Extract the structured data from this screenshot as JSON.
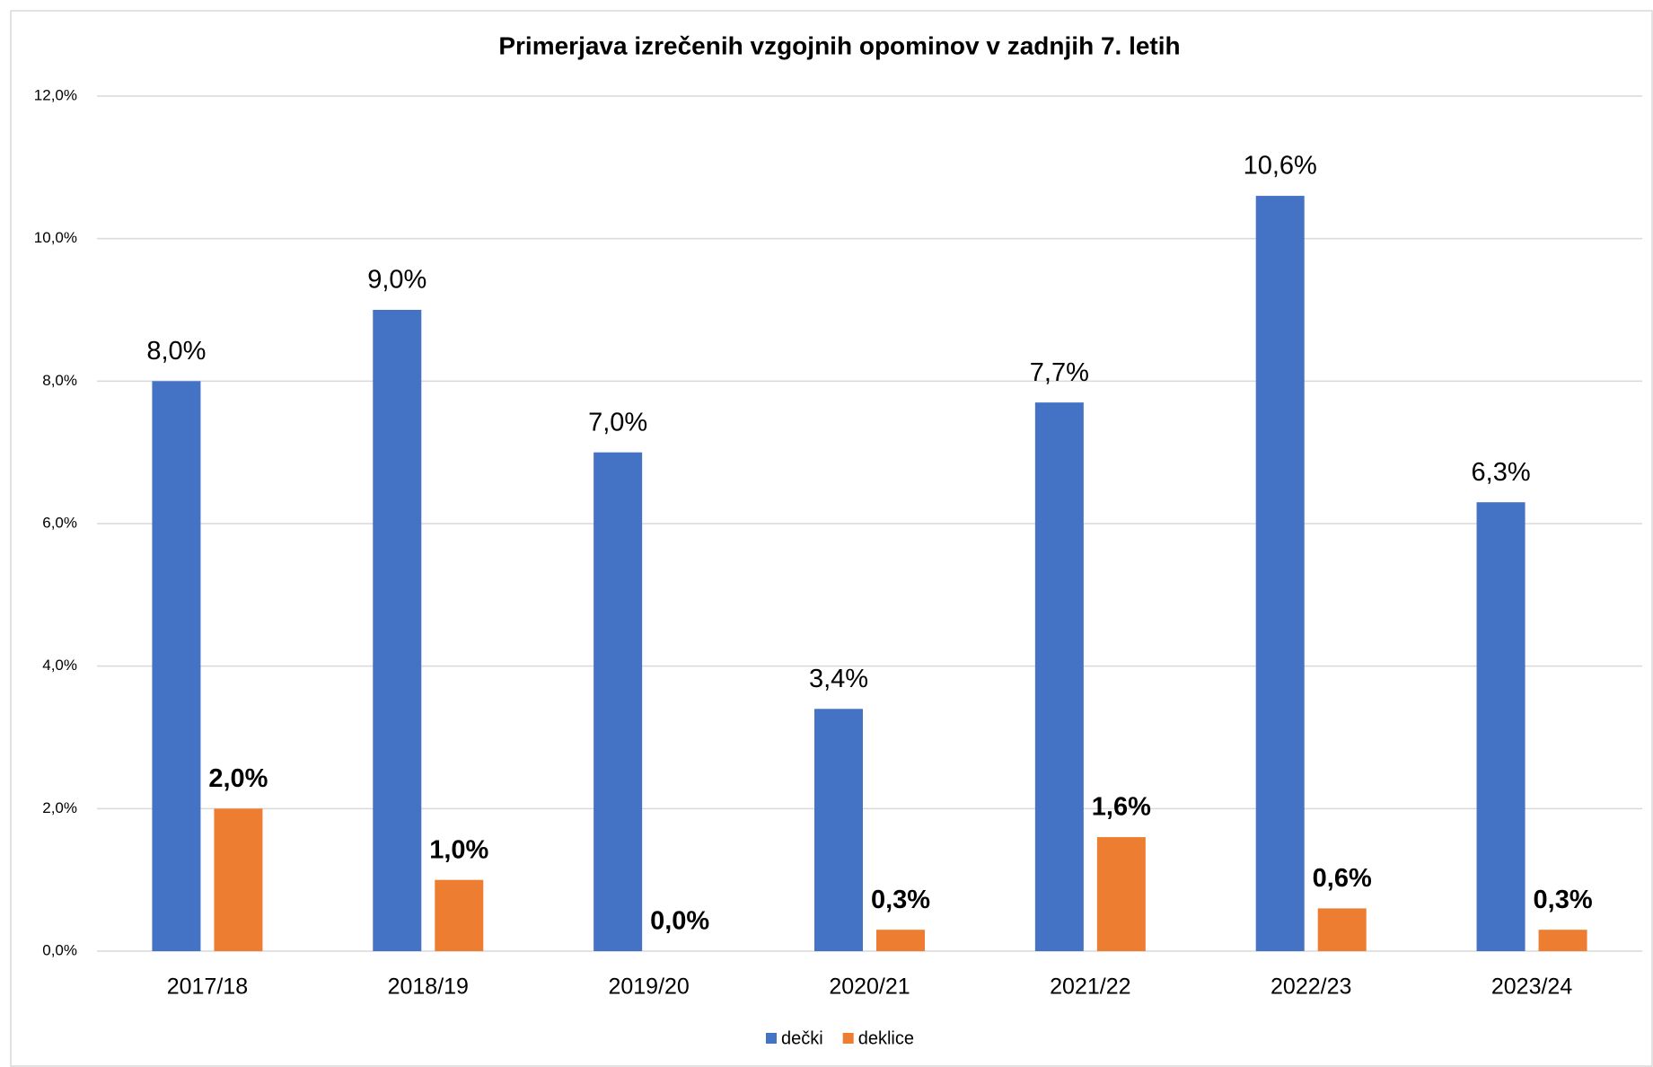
{
  "chart_data": {
    "type": "bar",
    "title": "Primerjava izrečenih vzgojnih opominov v zadnjih 7. letih",
    "categories": [
      "2017/18",
      "2018/19",
      "2019/20",
      "2020/21",
      "2021/22",
      "2022/23",
      "2023/24"
    ],
    "series": [
      {
        "name": "dečki",
        "color": "#4472c4",
        "values": [
          8.0,
          9.0,
          7.0,
          3.4,
          7.7,
          10.6,
          6.3
        ],
        "value_labels": [
          "8,0%",
          "9,0%",
          "7,0%",
          "3,4%",
          "7,7%",
          "10,6%",
          "6,3%"
        ]
      },
      {
        "name": "deklice",
        "color": "#ed7d31",
        "values": [
          2.0,
          1.0,
          0.0,
          0.3,
          1.6,
          0.6,
          0.3
        ],
        "value_labels": [
          "2,0%",
          "1,0%",
          "0,0%",
          "0,3%",
          "1,6%",
          "0,6%",
          "0,3%"
        ]
      }
    ],
    "ylim": [
      0,
      12
    ],
    "yticks": [
      {
        "value": 0,
        "label": "0,0%"
      },
      {
        "value": 2,
        "label": "2,0%"
      },
      {
        "value": 4,
        "label": "4,0%"
      },
      {
        "value": 6,
        "label": "6,0%"
      },
      {
        "value": 8,
        "label": "8,0%"
      },
      {
        "value": 10,
        "label": "10,0%"
      },
      {
        "value": 12,
        "label": "12,0%"
      }
    ],
    "grid": true,
    "legend": "bottom"
  }
}
